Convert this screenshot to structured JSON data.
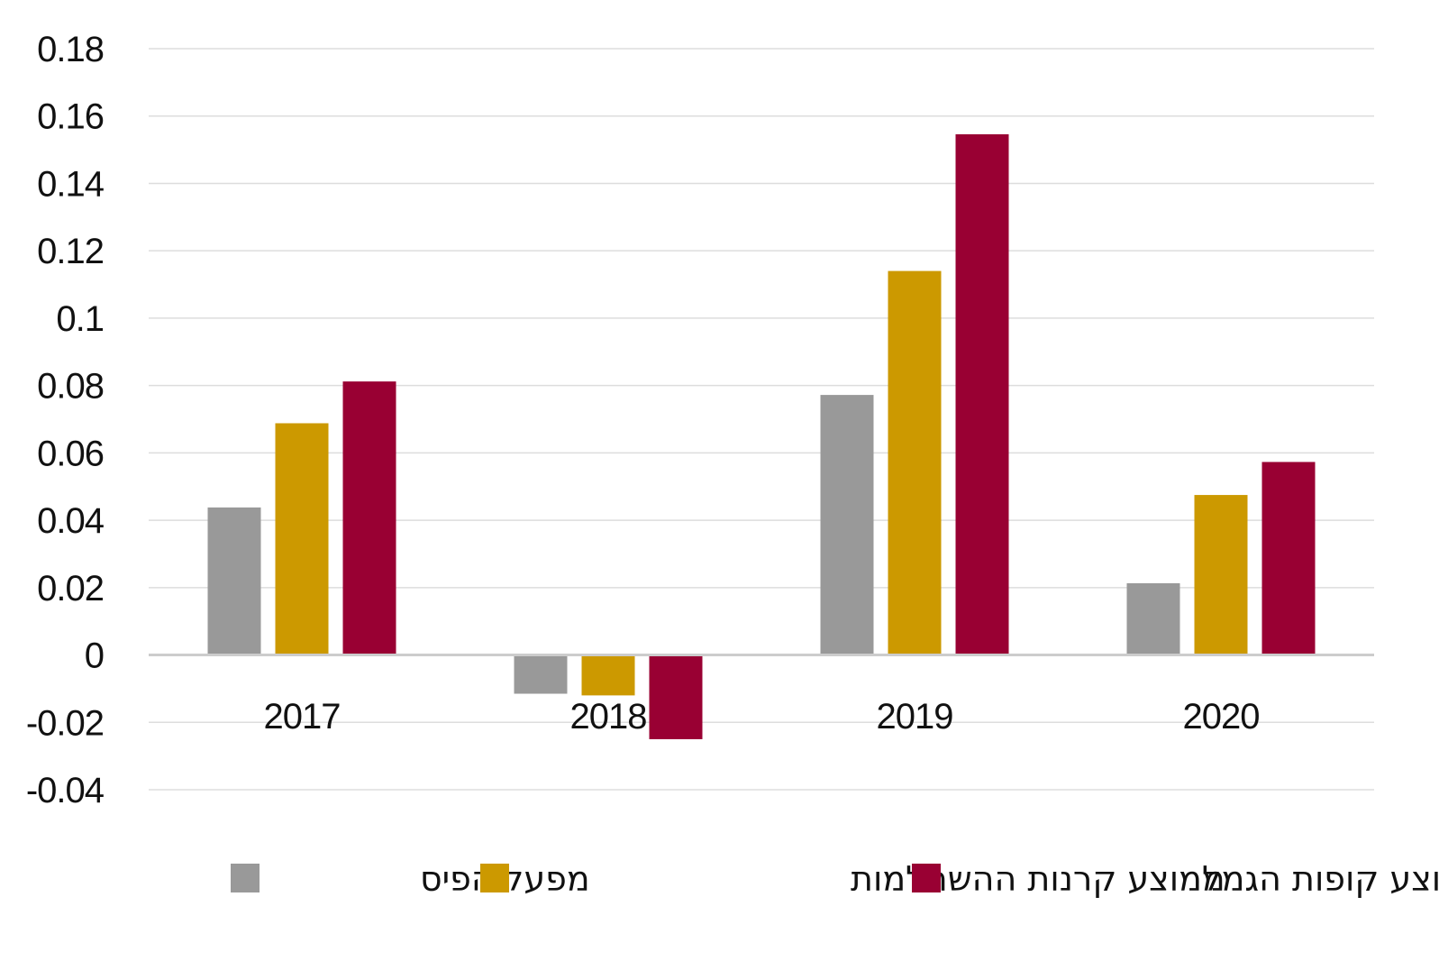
{
  "chart_data": {
    "type": "bar",
    "title": "",
    "xlabel": "",
    "ylabel": "",
    "categories": [
      "2017",
      "2018",
      "2019",
      "2020"
    ],
    "ylim": [
      -0.04,
      0.18
    ],
    "yticks": [
      0.18,
      0.16,
      0.14,
      0.12,
      0.1,
      0.08,
      0.06,
      0.04,
      0.02,
      0,
      -0.02,
      -0.04
    ],
    "yticks_labels": [
      "0.18",
      "0.16",
      "0.14",
      "0.12",
      "0.1",
      "0.08",
      "0.06",
      "0.04",
      "0.02",
      "0",
      "-0.02",
      "-0.04"
    ],
    "grid": true,
    "legend_position": "bottom",
    "series": [
      {
        "name": "מפעל הפיס",
        "color": "#999999",
        "values": [
          0.0438,
          -0.0115,
          0.0772,
          0.0213
        ]
      },
      {
        "name": "ממוצע קרנות ההשתלמות",
        "color": "#cc9900",
        "values": [
          0.0688,
          -0.012,
          0.114,
          0.0475
        ]
      },
      {
        "name": "ממוצע קופות הגמל",
        "color": "#990033",
        "values": [
          0.0812,
          -0.025,
          0.1546,
          0.0573
        ]
      }
    ]
  }
}
